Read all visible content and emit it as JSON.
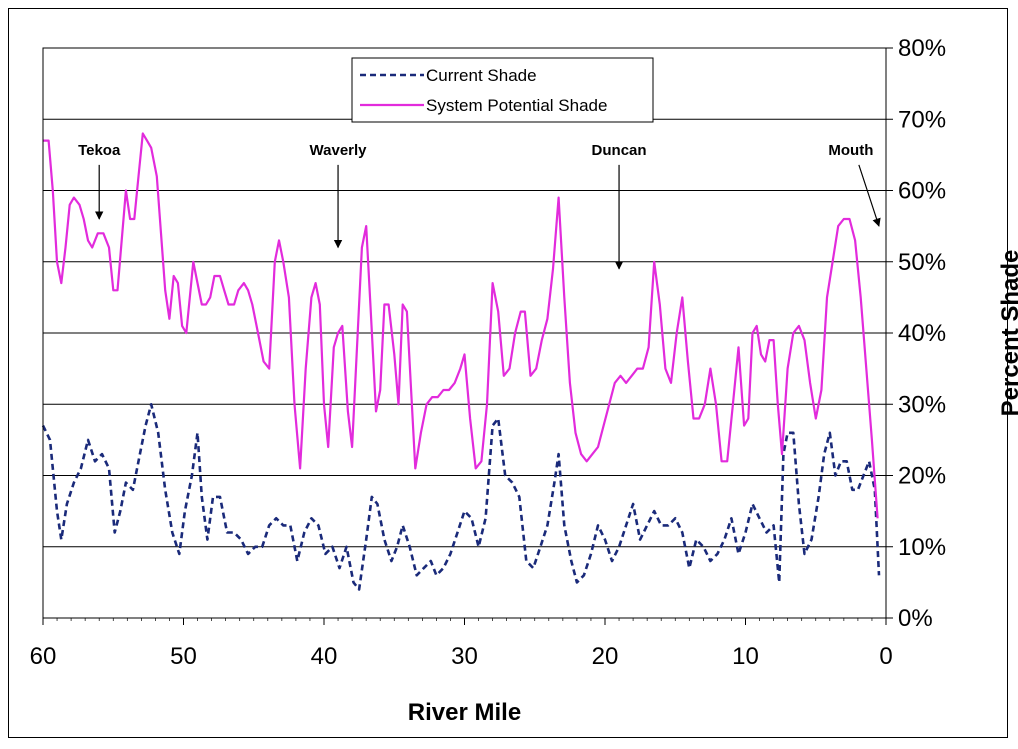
{
  "chart_data": {
    "type": "line",
    "xlabel": "River Mile",
    "ylabel": "Percent Shade",
    "xlim": [
      60,
      0
    ],
    "ylim": [
      0,
      80
    ],
    "x_ticks": [
      "60",
      "50",
      "40",
      "30",
      "20",
      "10",
      "0"
    ],
    "y_ticks": [
      "0%",
      "10%",
      "20%",
      "30%",
      "40%",
      "50%",
      "60%",
      "70%",
      "80%"
    ],
    "grid": "horizontal",
    "legend_position": "top-center",
    "series": [
      {
        "name": "Current Shade",
        "style": "dashed",
        "color": "#1a2a7a",
        "points": [
          [
            60,
            27
          ],
          [
            59.5,
            25
          ],
          [
            59,
            15
          ],
          [
            58.7,
            11
          ],
          [
            58.3,
            16
          ],
          [
            57.8,
            19
          ],
          [
            57.3,
            21
          ],
          [
            56.8,
            25
          ],
          [
            56.3,
            22
          ],
          [
            55.8,
            23
          ],
          [
            55.3,
            21
          ],
          [
            54.9,
            12
          ],
          [
            54.5,
            15
          ],
          [
            54.1,
            19
          ],
          [
            53.6,
            18
          ],
          [
            53.1,
            23
          ],
          [
            52.7,
            27
          ],
          [
            52.3,
            30
          ],
          [
            51.8,
            26
          ],
          [
            51.3,
            18
          ],
          [
            50.8,
            12
          ],
          [
            50.3,
            9
          ],
          [
            49.9,
            15
          ],
          [
            49.4,
            20
          ],
          [
            49.0,
            26
          ],
          [
            48.7,
            17
          ],
          [
            48.3,
            11
          ],
          [
            47.9,
            17
          ],
          [
            47.4,
            17
          ],
          [
            46.9,
            12
          ],
          [
            46.4,
            12
          ],
          [
            45.9,
            11
          ],
          [
            45.4,
            9
          ],
          [
            44.9,
            10
          ],
          [
            44.4,
            10
          ],
          [
            43.9,
            13
          ],
          [
            43.4,
            14
          ],
          [
            42.9,
            13
          ],
          [
            42.4,
            13
          ],
          [
            41.9,
            8
          ],
          [
            41.4,
            12
          ],
          [
            40.9,
            14
          ],
          [
            40.4,
            13
          ],
          [
            39.9,
            9
          ],
          [
            39.4,
            10
          ],
          [
            38.9,
            7
          ],
          [
            38.4,
            10
          ],
          [
            37.9,
            5
          ],
          [
            37.5,
            4
          ],
          [
            37.0,
            11
          ],
          [
            36.6,
            17
          ],
          [
            36.2,
            16
          ],
          [
            35.7,
            11
          ],
          [
            35.2,
            8
          ],
          [
            34.8,
            10
          ],
          [
            34.4,
            13
          ],
          [
            33.9,
            10
          ],
          [
            33.4,
            6
          ],
          [
            32.9,
            7
          ],
          [
            32.4,
            8
          ],
          [
            32.0,
            6
          ],
          [
            31.5,
            7
          ],
          [
            31.0,
            9
          ],
          [
            30.5,
            12
          ],
          [
            30.0,
            15
          ],
          [
            29.5,
            14
          ],
          [
            29.0,
            10
          ],
          [
            28.5,
            14
          ],
          [
            28.0,
            27
          ],
          [
            27.6,
            28
          ],
          [
            27.1,
            20
          ],
          [
            26.6,
            19
          ],
          [
            26.1,
            17
          ],
          [
            25.6,
            8
          ],
          [
            25.1,
            7
          ],
          [
            24.6,
            10
          ],
          [
            24.1,
            13
          ],
          [
            23.6,
            19
          ],
          [
            23.3,
            23
          ],
          [
            22.9,
            13
          ],
          [
            22.4,
            8
          ],
          [
            22.0,
            5
          ],
          [
            21.5,
            6
          ],
          [
            21.0,
            9
          ],
          [
            20.5,
            13
          ],
          [
            20.0,
            11
          ],
          [
            19.5,
            8
          ],
          [
            19.0,
            10
          ],
          [
            18.5,
            13
          ],
          [
            18.0,
            16
          ],
          [
            17.5,
            11
          ],
          [
            17.0,
            13
          ],
          [
            16.5,
            15
          ],
          [
            16.0,
            13
          ],
          [
            15.5,
            13
          ],
          [
            15.0,
            14
          ],
          [
            14.5,
            12
          ],
          [
            14.0,
            7
          ],
          [
            13.5,
            11
          ],
          [
            13.0,
            10
          ],
          [
            12.5,
            8
          ],
          [
            12.0,
            9
          ],
          [
            11.5,
            11
          ],
          [
            11.0,
            14
          ],
          [
            10.5,
            9
          ],
          [
            10.0,
            12
          ],
          [
            9.5,
            16
          ],
          [
            9.0,
            14
          ],
          [
            8.5,
            12
          ],
          [
            8.0,
            13
          ],
          [
            7.6,
            5
          ],
          [
            7.3,
            23
          ],
          [
            7.0,
            26
          ],
          [
            6.6,
            26
          ],
          [
            6.2,
            16
          ],
          [
            5.8,
            9
          ],
          [
            5.3,
            11
          ],
          [
            4.8,
            17
          ],
          [
            4.4,
            23
          ],
          [
            4.0,
            26
          ],
          [
            3.6,
            20
          ],
          [
            3.2,
            22
          ],
          [
            2.8,
            22
          ],
          [
            2.4,
            18
          ],
          [
            2.0,
            18
          ],
          [
            1.6,
            20
          ],
          [
            1.2,
            22
          ],
          [
            0.8,
            18
          ],
          [
            0.5,
            6
          ]
        ]
      },
      {
        "name": "System Potential Shade",
        "style": "solid",
        "color": "#e22bdc",
        "points": [
          [
            60,
            67
          ],
          [
            59.6,
            67
          ],
          [
            59.3,
            60
          ],
          [
            59.0,
            50
          ],
          [
            58.7,
            47
          ],
          [
            58.4,
            52
          ],
          [
            58.1,
            58
          ],
          [
            57.8,
            59
          ],
          [
            57.4,
            58
          ],
          [
            57.1,
            56
          ],
          [
            56.8,
            53
          ],
          [
            56.5,
            52
          ],
          [
            56.1,
            54
          ],
          [
            55.7,
            54
          ],
          [
            55.3,
            52
          ],
          [
            55.0,
            46
          ],
          [
            54.7,
            46
          ],
          [
            54.4,
            53
          ],
          [
            54.1,
            60
          ],
          [
            53.8,
            56
          ],
          [
            53.5,
            56
          ],
          [
            53.2,
            62
          ],
          [
            52.9,
            68
          ],
          [
            52.6,
            67
          ],
          [
            52.3,
            66
          ],
          [
            51.9,
            62
          ],
          [
            51.6,
            54
          ],
          [
            51.3,
            46
          ],
          [
            51.0,
            42
          ],
          [
            50.7,
            48
          ],
          [
            50.4,
            47
          ],
          [
            50.1,
            41
          ],
          [
            49.8,
            40
          ],
          [
            49.5,
            46
          ],
          [
            49.3,
            50
          ],
          [
            49.0,
            47
          ],
          [
            48.7,
            44
          ],
          [
            48.4,
            44
          ],
          [
            48.1,
            45
          ],
          [
            47.8,
            48
          ],
          [
            47.4,
            48
          ],
          [
            47.1,
            46
          ],
          [
            46.8,
            44
          ],
          [
            46.4,
            44
          ],
          [
            46.1,
            46
          ],
          [
            45.7,
            47
          ],
          [
            45.4,
            46
          ],
          [
            45.1,
            44
          ],
          [
            44.7,
            40
          ],
          [
            44.3,
            36
          ],
          [
            43.9,
            35
          ],
          [
            43.5,
            50
          ],
          [
            43.2,
            53
          ],
          [
            42.9,
            50
          ],
          [
            42.5,
            45
          ],
          [
            42.1,
            30
          ],
          [
            41.7,
            21
          ],
          [
            41.3,
            35
          ],
          [
            40.9,
            45
          ],
          [
            40.6,
            47
          ],
          [
            40.3,
            44
          ],
          [
            40.0,
            30
          ],
          [
            39.7,
            24
          ],
          [
            39.3,
            38
          ],
          [
            39.0,
            40
          ],
          [
            38.7,
            41
          ],
          [
            38.3,
            29
          ],
          [
            38.0,
            24
          ],
          [
            37.6,
            40
          ],
          [
            37.3,
            52
          ],
          [
            37.0,
            55
          ],
          [
            36.7,
            44
          ],
          [
            36.3,
            29
          ],
          [
            36.0,
            32
          ],
          [
            35.7,
            44
          ],
          [
            35.4,
            44
          ],
          [
            35.0,
            37
          ],
          [
            34.7,
            30
          ],
          [
            34.4,
            44
          ],
          [
            34.1,
            43
          ],
          [
            33.8,
            32
          ],
          [
            33.5,
            21
          ],
          [
            33.1,
            26
          ],
          [
            32.7,
            30
          ],
          [
            32.3,
            31
          ],
          [
            31.9,
            31
          ],
          [
            31.5,
            32
          ],
          [
            31.1,
            32
          ],
          [
            30.7,
            33
          ],
          [
            30.3,
            35
          ],
          [
            30.0,
            37
          ],
          [
            29.6,
            28
          ],
          [
            29.2,
            21
          ],
          [
            28.8,
            22
          ],
          [
            28.4,
            30
          ],
          [
            28.0,
            47
          ],
          [
            27.6,
            43
          ],
          [
            27.2,
            34
          ],
          [
            26.8,
            35
          ],
          [
            26.4,
            40
          ],
          [
            26.0,
            43
          ],
          [
            25.7,
            43
          ],
          [
            25.3,
            34
          ],
          [
            24.9,
            35
          ],
          [
            24.5,
            39
          ],
          [
            24.1,
            42
          ],
          [
            23.7,
            49
          ],
          [
            23.3,
            59
          ],
          [
            22.9,
            45
          ],
          [
            22.5,
            33
          ],
          [
            22.1,
            26
          ],
          [
            21.7,
            23
          ],
          [
            21.3,
            22
          ],
          [
            20.9,
            23
          ],
          [
            20.5,
            24
          ],
          [
            20.1,
            27
          ],
          [
            19.7,
            30
          ],
          [
            19.3,
            33
          ],
          [
            18.9,
            34
          ],
          [
            18.5,
            33
          ],
          [
            18.1,
            34
          ],
          [
            17.7,
            35
          ],
          [
            17.3,
            35
          ],
          [
            16.9,
            38
          ],
          [
            16.5,
            50
          ],
          [
            16.1,
            44
          ],
          [
            15.7,
            35
          ],
          [
            15.3,
            33
          ],
          [
            14.9,
            40
          ],
          [
            14.5,
            45
          ],
          [
            14.1,
            36
          ],
          [
            13.7,
            28
          ],
          [
            13.3,
            28
          ],
          [
            12.9,
            30
          ],
          [
            12.5,
            35
          ],
          [
            12.1,
            30
          ],
          [
            11.7,
            22
          ],
          [
            11.3,
            22
          ],
          [
            10.9,
            30
          ],
          [
            10.5,
            38
          ],
          [
            10.1,
            27
          ],
          [
            9.8,
            28
          ],
          [
            9.5,
            40
          ],
          [
            9.2,
            41
          ],
          [
            8.9,
            37
          ],
          [
            8.6,
            36
          ],
          [
            8.3,
            39
          ],
          [
            8.0,
            39
          ],
          [
            7.7,
            30
          ],
          [
            7.4,
            23
          ],
          [
            7.0,
            35
          ],
          [
            6.6,
            40
          ],
          [
            6.2,
            41
          ],
          [
            5.8,
            39
          ],
          [
            5.4,
            33
          ],
          [
            5.0,
            28
          ],
          [
            4.6,
            32
          ],
          [
            4.2,
            45
          ],
          [
            3.8,
            50
          ],
          [
            3.4,
            55
          ],
          [
            3.0,
            56
          ],
          [
            2.6,
            56
          ],
          [
            2.2,
            53
          ],
          [
            1.8,
            45
          ],
          [
            1.4,
            35
          ],
          [
            1.0,
            25
          ],
          [
            0.6,
            14
          ]
        ]
      }
    ],
    "annotations": [
      {
        "label": "Tekoa",
        "x": 56,
        "y": 65,
        "arrow_to": [
          56,
          56
        ],
        "align": "center"
      },
      {
        "label": "Waverly",
        "x": 39,
        "y": 65,
        "arrow_to": [
          39,
          52
        ],
        "align": "center"
      },
      {
        "label": "Duncan",
        "x": 19,
        "y": 65,
        "arrow_to": [
          19,
          49
        ],
        "align": "center"
      },
      {
        "label": "Mouth",
        "x": 2.5,
        "y": 65,
        "arrow_to": [
          0.5,
          55
        ],
        "align": "right"
      }
    ]
  }
}
